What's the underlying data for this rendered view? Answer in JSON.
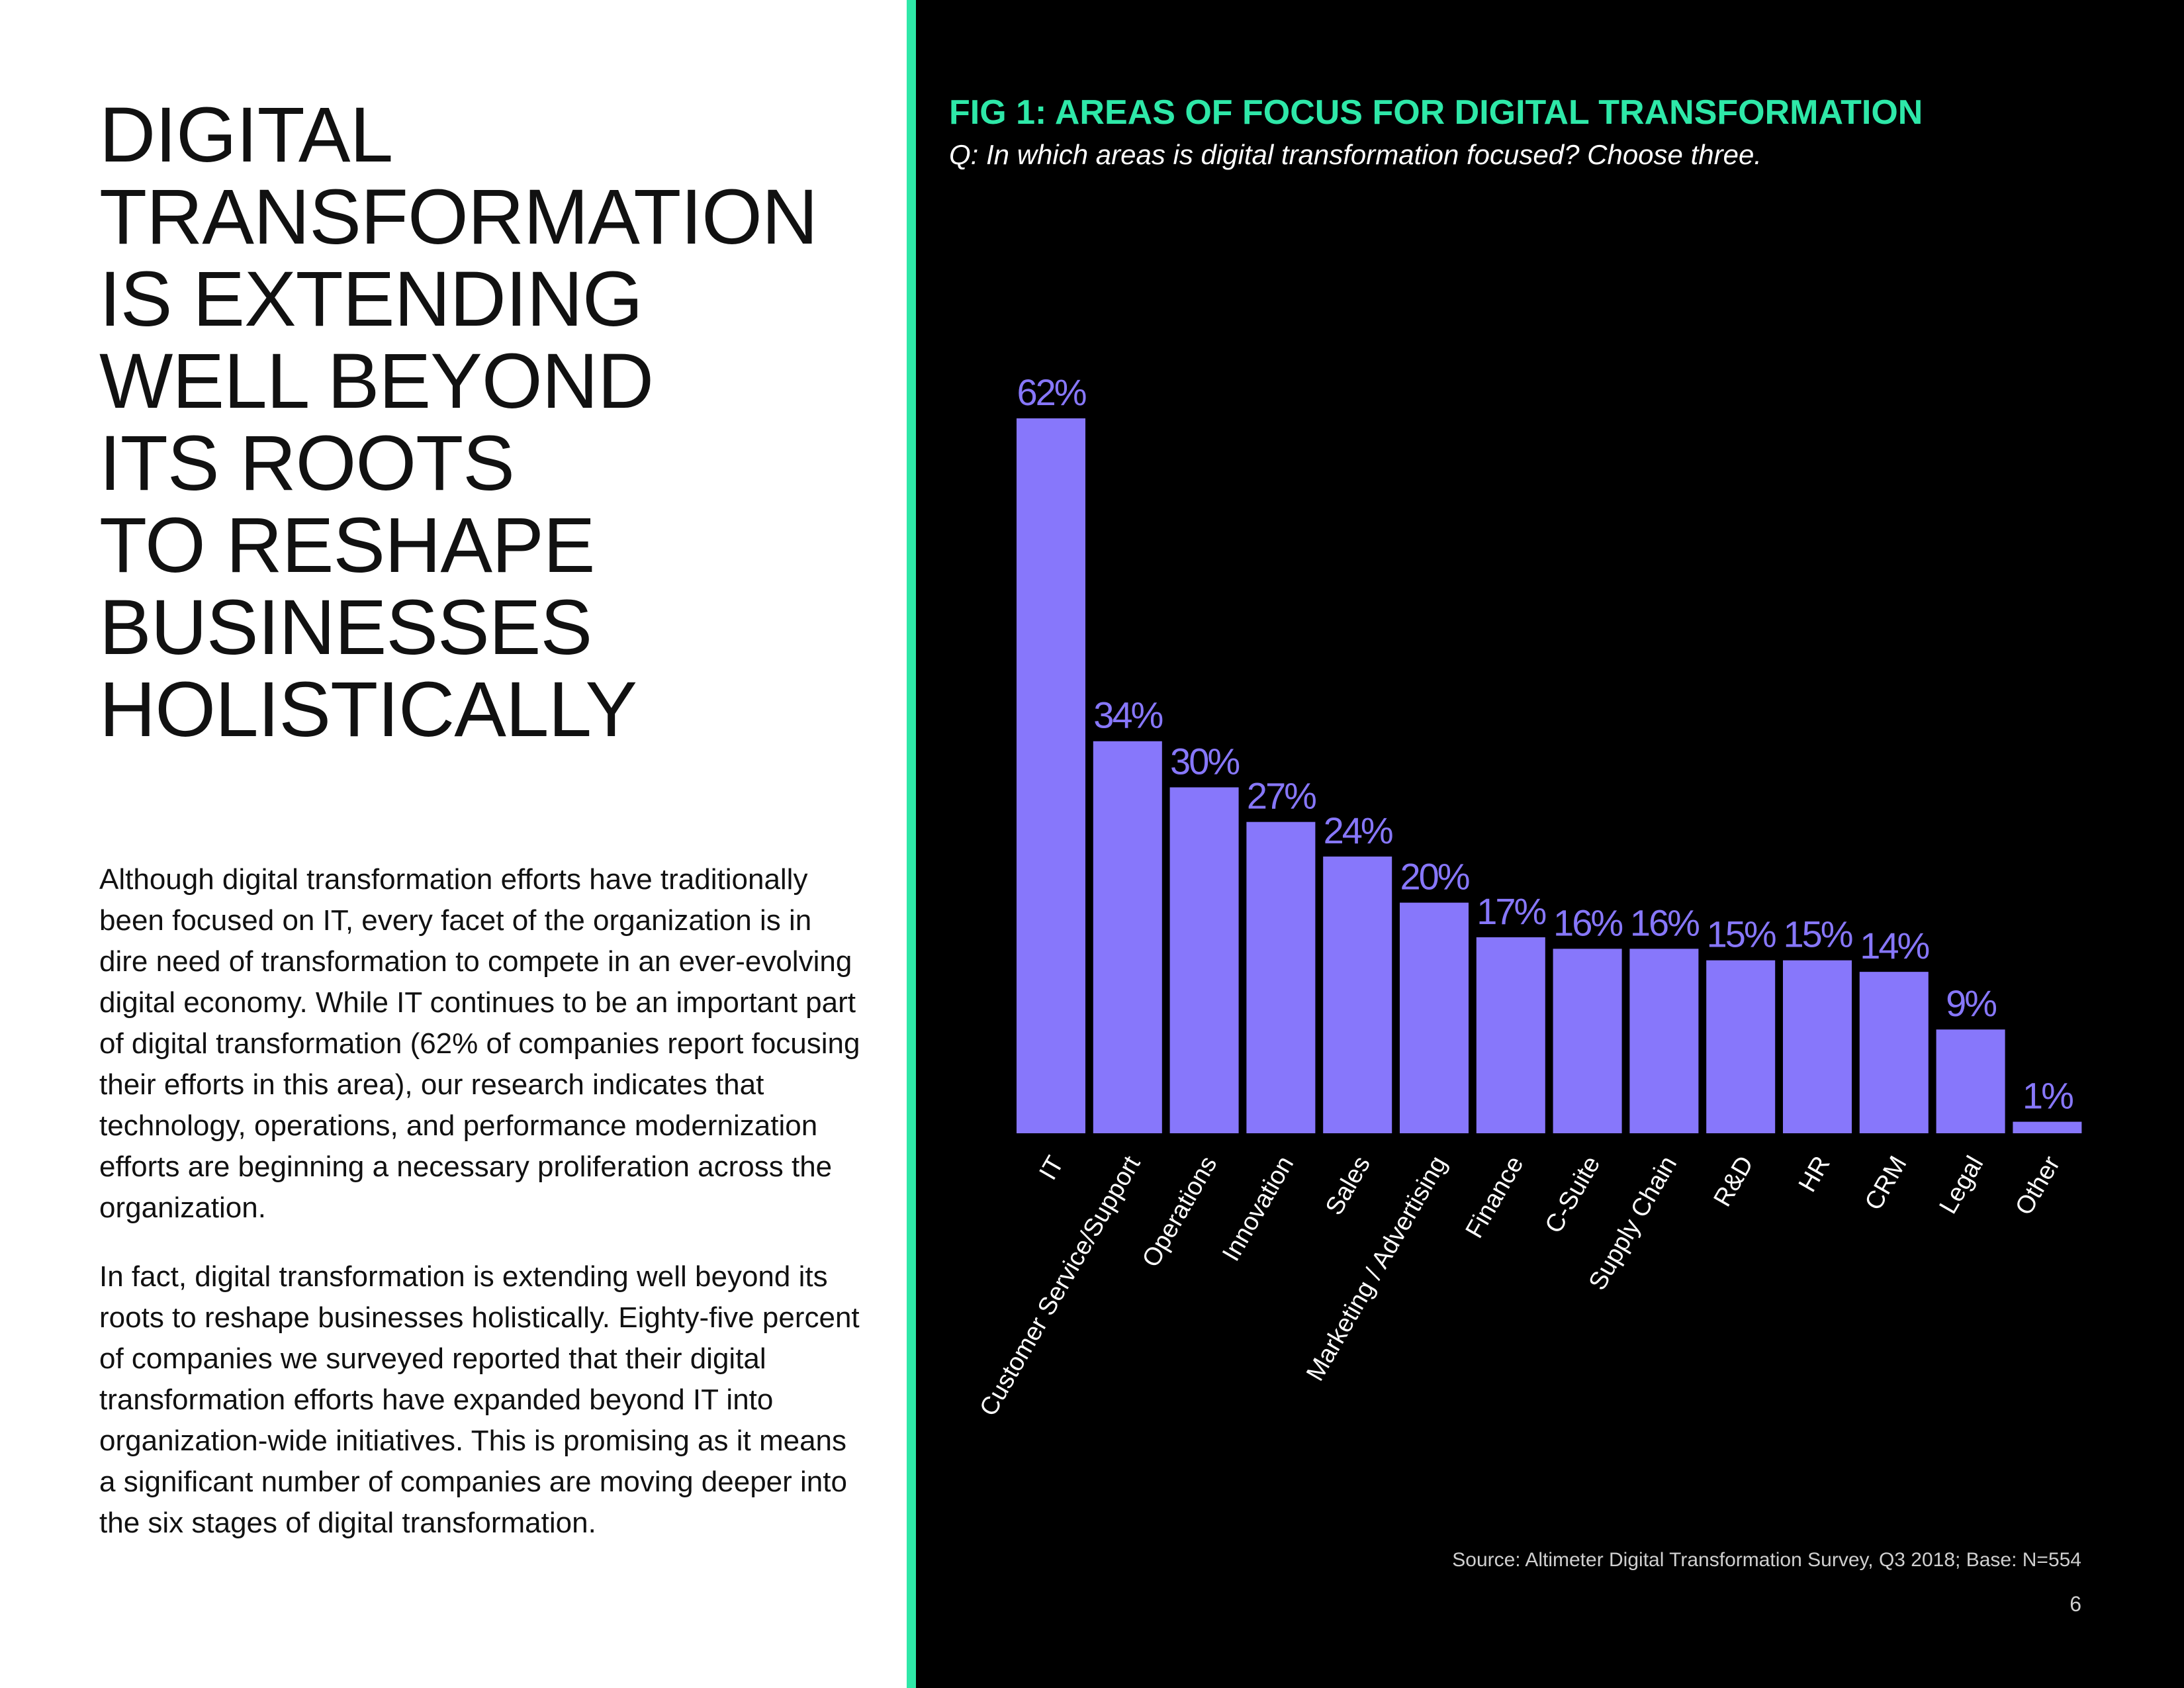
{
  "page": {
    "headline_lines": [
      "DIGITAL",
      "TRANSFORMATION",
      "IS EXTENDING",
      "WELL BEYOND",
      "ITS ROOTS",
      "TO RESHAPE",
      "BUSINESSES",
      "HOLISTICALLY"
    ],
    "paragraphs": [
      "Although digital transformation efforts have traditionally been focused on IT, every facet of the organization is in dire need of transformation to compete in an ever-evolving digital economy. While IT continues to be an important part of digital transformation (62% of companies report focusing their efforts in this area), our research indicates that technology, operations, and performance modernization efforts are beginning a necessary proliferation across the organization.",
      "In fact, digital transformation is extending well beyond its roots to reshape businesses holistically. Eighty-five percent of companies we surveyed reported that their digital transformation efforts have expanded beyond IT into organization-wide initiatives. This is promising as it means a significant number of companies are moving deeper into the six stages of digital transformation."
    ],
    "source": "Source: Altimeter Digital Transformation Survey, Q3 2018; Base: N=554",
    "page_number": "6"
  },
  "colors": {
    "accent": "#2ee8a8",
    "bar": "#8777fb",
    "background_dark": "#000000",
    "text_dark": "#111111",
    "text_light": "#ffffff"
  },
  "chart_data": {
    "type": "bar",
    "title": "FIG 1: AREAS OF FOCUS FOR DIGITAL TRANSFORMATION",
    "subtitle": "Q: In which areas is digital transformation focused? Choose three.",
    "categories": [
      "IT",
      "Customer Service/Support",
      "Operations",
      "Innovation",
      "Sales",
      "Marketing / Advertising",
      "Finance",
      "C-Suite",
      "Supply Chain",
      "R&D",
      "HR",
      "CRM",
      "Legal",
      "Other"
    ],
    "values": [
      62,
      34,
      30,
      27,
      24,
      20,
      17,
      16,
      16,
      15,
      15,
      14,
      9,
      1
    ],
    "value_labels": [
      "62%",
      "34%",
      "30%",
      "27%",
      "24%",
      "20%",
      "17%",
      "16%",
      "16%",
      "15%",
      "15%",
      "14%",
      "9%",
      "1%"
    ],
    "unit": "%",
    "ylim": [
      0,
      62
    ],
    "grid": false,
    "xlabel": "",
    "ylabel": ""
  }
}
